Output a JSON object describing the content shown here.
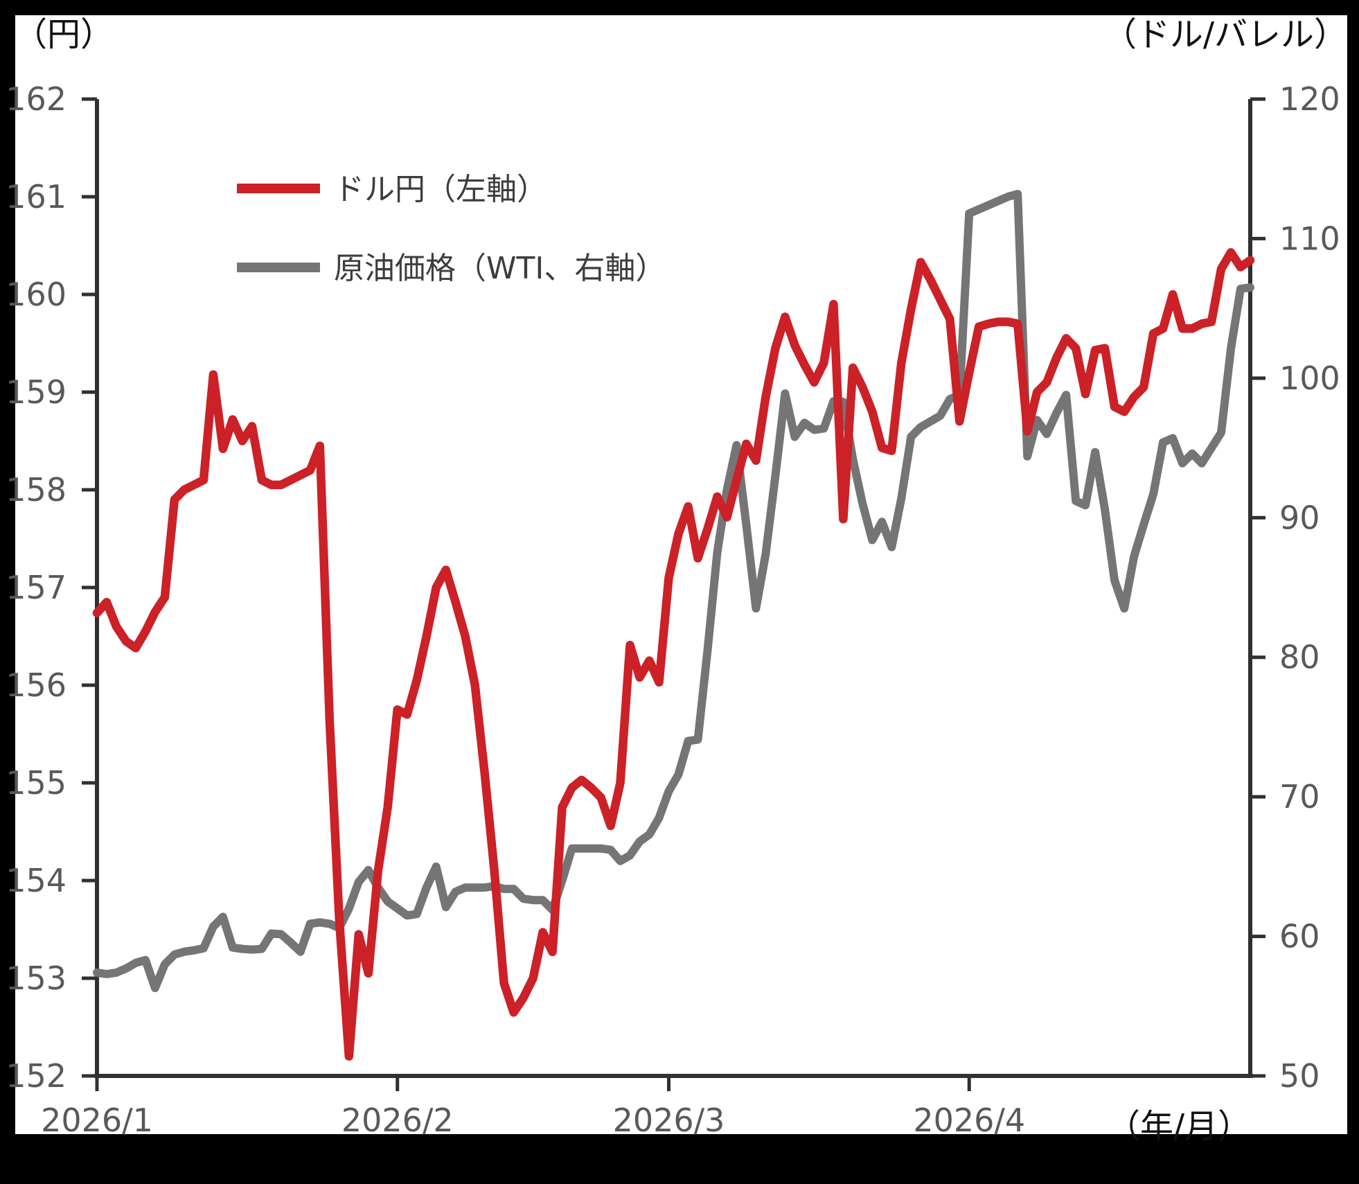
{
  "frame": {
    "background": "#000000",
    "canvas_background": "#ffffff"
  },
  "axis_units": {
    "left": "（円）",
    "right": "（ドル/バレル）",
    "x": "（年/月）"
  },
  "legend": {
    "items": [
      {
        "label": "ドル円（左軸）",
        "color": "#cb2127"
      },
      {
        "label": "原油価格（WTI、右軸）",
        "color": "#757575"
      }
    ]
  },
  "chart_data": {
    "type": "line",
    "title": "",
    "frequency": "daily",
    "x_start_date": "2026/1/1",
    "x_end_date": "2026/4/30",
    "grid": false,
    "legend_position": "top-left-inside",
    "x_axis": {
      "label": "（年/月）",
      "ticks": [
        {
          "label": "2026/1",
          "day_index": 0
        },
        {
          "label": "2026/2",
          "day_index": 31
        },
        {
          "label": "2026/3",
          "day_index": 59
        },
        {
          "label": "2026/4",
          "day_index": 90
        }
      ]
    },
    "left_axis": {
      "unit": "（円）",
      "min": 152,
      "max": 162,
      "tick_step": 1,
      "ticks": [
        162,
        161,
        160,
        159,
        158,
        157,
        156,
        155,
        154,
        153,
        152
      ]
    },
    "right_axis": {
      "unit": "（ドル/バレル）",
      "min": 50,
      "max": 120,
      "tick_step": 10,
      "ticks": [
        120,
        110,
        100,
        90,
        80,
        70,
        60,
        50
      ]
    },
    "series": [
      {
        "name": "原油価格（WTI、右軸）",
        "axis": "right",
        "color": "#757575",
        "stroke_width": 12,
        "values": [
          57.4,
          57.3,
          57.4,
          57.7,
          58.1,
          58.3,
          56.3,
          58.0,
          58.7,
          58.9,
          59.0,
          59.15,
          60.7,
          61.4,
          59.2,
          59.1,
          59.05,
          59.1,
          60.2,
          60.15,
          59.55,
          58.9,
          60.9,
          61.0,
          60.9,
          60.6,
          62.0,
          63.9,
          64.75,
          63.5,
          62.5,
          62.0,
          61.5,
          61.6,
          63.5,
          65.0,
          62.1,
          63.2,
          63.5,
          63.5,
          63.5,
          63.6,
          63.4,
          63.4,
          62.7,
          62.6,
          62.6,
          61.9,
          64.0,
          66.3,
          66.3,
          66.3,
          66.3,
          66.2,
          65.4,
          65.8,
          66.8,
          67.3,
          68.5,
          70.4,
          71.6,
          74.0,
          74.1,
          80.5,
          87.5,
          92.0,
          95.2,
          89.5,
          83.5,
          87.4,
          93.0,
          98.9,
          95.8,
          96.8,
          96.3,
          96.4,
          98.35,
          98.3,
          94.2,
          91.0,
          88.4,
          89.7,
          87.9,
          91.4,
          95.8,
          96.5,
          96.9,
          97.3,
          98.5,
          98.8,
          111.8,
          112.1,
          112.4,
          112.7,
          113.0,
          113.2,
          94.4,
          97.0,
          96.0,
          97.5,
          98.8,
          91.2,
          90.9,
          94.7,
          90.6,
          85.5,
          83.5,
          87.2,
          89.5,
          91.7,
          95.4,
          95.7,
          93.9,
          94.6,
          93.9,
          95.0,
          96.1,
          102.1,
          106.4,
          106.5
        ]
      },
      {
        "name": "ドル円（左軸）",
        "axis": "left",
        "color": "#cb2127",
        "stroke_width": 12.5,
        "values": [
          156.74,
          156.85,
          156.6,
          156.45,
          156.38,
          156.55,
          156.75,
          156.9,
          157.9,
          158.0,
          158.05,
          158.1,
          159.18,
          158.42,
          158.72,
          158.5,
          158.65,
          158.1,
          158.05,
          158.05,
          158.1,
          158.15,
          158.2,
          158.45,
          155.65,
          153.6,
          152.2,
          153.45,
          153.05,
          154.1,
          154.75,
          155.75,
          155.7,
          156.05,
          156.5,
          157.0,
          157.18,
          156.85,
          156.5,
          156.0,
          155.1,
          154.1,
          152.95,
          152.65,
          152.8,
          153.0,
          153.47,
          153.27,
          154.75,
          154.95,
          155.03,
          154.95,
          154.85,
          154.56,
          155.0,
          156.41,
          156.08,
          156.25,
          156.03,
          157.1,
          157.55,
          157.83,
          157.3,
          157.6,
          157.93,
          157.72,
          158.1,
          158.47,
          158.3,
          158.95,
          159.45,
          159.77,
          159.48,
          159.28,
          159.1,
          159.3,
          159.9,
          157.7,
          159.25,
          159.05,
          158.8,
          158.43,
          158.4,
          159.3,
          159.85,
          160.33,
          160.15,
          159.95,
          159.75,
          158.7,
          159.2,
          159.67,
          159.7,
          159.72,
          159.72,
          159.7,
          158.6,
          159.0,
          159.1,
          159.35,
          159.55,
          159.45,
          158.98,
          159.43,
          159.45,
          158.85,
          158.8,
          158.95,
          159.05,
          159.6,
          159.65,
          160.0,
          159.65,
          159.65,
          159.7,
          159.72,
          160.26,
          160.43,
          160.28,
          160.35
        ]
      }
    ]
  }
}
